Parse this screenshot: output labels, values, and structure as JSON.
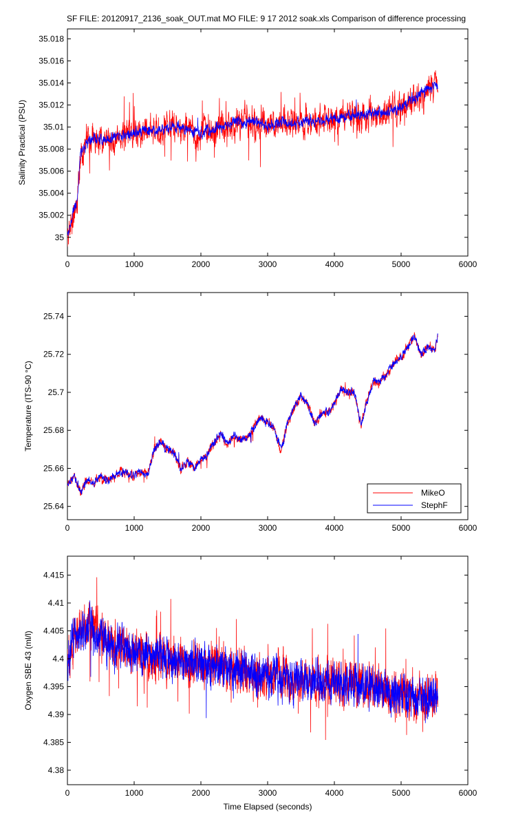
{
  "figure": {
    "title": "SF FILE: 20120917_2136_soak_OUT.mat  MO FILE: 9 17 2012 soak.xls   Comparison of difference processing",
    "series_colors": {
      "MikeO": "#ff0000",
      "StephF": "#0000ff"
    }
  },
  "chart_data": [
    {
      "type": "line",
      "title": "",
      "xlabel": "",
      "ylabel": "Salinity Practical (PSU)",
      "xlim": [
        0,
        6000
      ],
      "ylim": [
        34.9983,
        35.0189
      ],
      "xticks": [
        0,
        1000,
        2000,
        3000,
        4000,
        5000,
        6000
      ],
      "yticks": [
        35,
        35.002,
        35.004,
        35.006,
        35.008,
        35.01,
        35.012,
        35.014,
        35.016,
        35.018
      ],
      "ytick_labels": [
        "35",
        "35.002",
        "35.004",
        "35.006",
        "35.008",
        "35.01",
        "35.012",
        "35.014",
        "35.016",
        "35.018"
      ],
      "grid": false,
      "legend": null,
      "series": [
        {
          "name": "MikeO",
          "color": "#ff0000",
          "x": [
            0,
            150,
            200,
            400,
            600,
            800,
            1000,
            1200,
            1400,
            1600,
            1800,
            2000,
            2200,
            2400,
            2600,
            2800,
            3000,
            3200,
            3400,
            3600,
            3800,
            4000,
            4200,
            4400,
            4600,
            4800,
            5000,
            5200,
            5400,
            5550
          ],
          "y": [
            35.0,
            35.0035,
            35.008,
            35.009,
            35.0088,
            35.0092,
            35.0095,
            35.0097,
            35.0098,
            35.0101,
            35.0098,
            35.0094,
            35.0098,
            35.0103,
            35.0104,
            35.0104,
            35.0102,
            35.0103,
            35.0104,
            35.0105,
            35.0106,
            35.0108,
            35.0109,
            35.0112,
            35.0111,
            35.0115,
            35.0118,
            35.0125,
            35.0135,
            35.0138
          ],
          "noise": 0.0016
        },
        {
          "name": "StephF",
          "color": "#0000ff",
          "x": [
            0,
            150,
            200,
            400,
            600,
            800,
            1000,
            1200,
            1400,
            1600,
            1800,
            2000,
            2200,
            2400,
            2600,
            2800,
            3000,
            3200,
            3400,
            3600,
            3800,
            4000,
            4200,
            4400,
            4600,
            4800,
            5000,
            5200,
            5400,
            5550
          ],
          "y": [
            35.0,
            35.0035,
            35.008,
            35.009,
            35.0088,
            35.0092,
            35.0095,
            35.0097,
            35.0098,
            35.0101,
            35.0098,
            35.0094,
            35.0098,
            35.0103,
            35.0104,
            35.0104,
            35.0102,
            35.0103,
            35.0104,
            35.0105,
            35.0106,
            35.0108,
            35.0109,
            35.0112,
            35.0111,
            35.0115,
            35.0118,
            35.0125,
            35.0135,
            35.0138
          ],
          "noise": 0.0006
        }
      ]
    },
    {
      "type": "line",
      "title": "",
      "xlabel": "",
      "ylabel": "Temperature (ITS-90 °C)",
      "xlim": [
        0,
        6000
      ],
      "ylim": [
        25.633,
        25.7525
      ],
      "xticks": [
        0,
        1000,
        2000,
        3000,
        4000,
        5000,
        6000
      ],
      "yticks": [
        25.64,
        25.66,
        25.68,
        25.7,
        25.72,
        25.74
      ],
      "ytick_labels": [
        "25.64",
        "25.66",
        "25.68",
        "25.7",
        "25.72",
        "25.74"
      ],
      "grid": false,
      "legend": {
        "position": "bottom-right",
        "entries": [
          "MikeO",
          "StephF"
        ]
      },
      "series": [
        {
          "name": "MikeO",
          "color": "#ff0000",
          "x": [
            0,
            100,
            200,
            300,
            400,
            500,
            600,
            700,
            800,
            900,
            1000,
            1100,
            1200,
            1300,
            1400,
            1500,
            1600,
            1700,
            1800,
            1900,
            2000,
            2100,
            2200,
            2300,
            2400,
            2500,
            2600,
            2700,
            2800,
            2900,
            3000,
            3100,
            3200,
            3300,
            3400,
            3500,
            3600,
            3700,
            3800,
            3900,
            4000,
            4100,
            4200,
            4300,
            4400,
            4500,
            4600,
            4700,
            4800,
            4900,
            5000,
            5100,
            5200,
            5300,
            5400,
            5500,
            5550
          ],
          "y": [
            25.651,
            25.656,
            25.648,
            25.654,
            25.653,
            25.655,
            25.654,
            25.656,
            25.658,
            25.657,
            25.656,
            25.658,
            25.656,
            25.67,
            25.674,
            25.67,
            25.668,
            25.66,
            25.664,
            25.66,
            25.664,
            25.667,
            25.674,
            25.678,
            25.673,
            25.677,
            25.675,
            25.676,
            25.682,
            25.687,
            25.684,
            25.681,
            25.67,
            25.684,
            25.692,
            25.698,
            25.694,
            25.684,
            25.688,
            25.69,
            25.694,
            25.702,
            25.7,
            25.7,
            25.683,
            25.697,
            25.706,
            25.706,
            25.71,
            25.716,
            25.718,
            25.724,
            25.73,
            25.72,
            25.724,
            25.722,
            25.73
          ],
          "noise": 0.003
        },
        {
          "name": "StephF",
          "color": "#0000ff",
          "x": [
            0,
            100,
            200,
            300,
            400,
            500,
            600,
            700,
            800,
            900,
            1000,
            1100,
            1200,
            1300,
            1400,
            1500,
            1600,
            1700,
            1800,
            1900,
            2000,
            2100,
            2200,
            2300,
            2400,
            2500,
            2600,
            2700,
            2800,
            2900,
            3000,
            3100,
            3200,
            3300,
            3400,
            3500,
            3600,
            3700,
            3800,
            3900,
            4000,
            4100,
            4200,
            4300,
            4400,
            4500,
            4600,
            4700,
            4800,
            4900,
            5000,
            5100,
            5200,
            5300,
            5400,
            5500,
            5550
          ],
          "y": [
            25.651,
            25.656,
            25.648,
            25.654,
            25.653,
            25.655,
            25.654,
            25.656,
            25.658,
            25.657,
            25.656,
            25.658,
            25.656,
            25.67,
            25.674,
            25.67,
            25.668,
            25.66,
            25.664,
            25.66,
            25.664,
            25.667,
            25.674,
            25.678,
            25.673,
            25.677,
            25.675,
            25.676,
            25.682,
            25.687,
            25.684,
            25.681,
            25.67,
            25.684,
            25.692,
            25.698,
            25.694,
            25.684,
            25.688,
            25.69,
            25.694,
            25.702,
            25.7,
            25.7,
            25.683,
            25.697,
            25.706,
            25.706,
            25.71,
            25.716,
            25.718,
            25.724,
            25.73,
            25.72,
            25.724,
            25.722,
            25.73
          ],
          "noise": 0.0025
        }
      ]
    },
    {
      "type": "line",
      "title": "",
      "xlabel": "Time Elapsed (seconds)",
      "ylabel": "Oxygen SBE 43 (ml/l)",
      "xlim": [
        0,
        6000
      ],
      "ylim": [
        4.3774,
        4.4184
      ],
      "xticks": [
        0,
        1000,
        2000,
        3000,
        4000,
        5000,
        6000
      ],
      "yticks": [
        4.38,
        4.385,
        4.39,
        4.395,
        4.4,
        4.405,
        4.41,
        4.415
      ],
      "ytick_labels": [
        "4.38",
        "4.385",
        "4.39",
        "4.395",
        "4.4",
        "4.405",
        "4.41",
        "4.415"
      ],
      "grid": false,
      "legend": null,
      "series": [
        {
          "name": "MikeO",
          "color": "#ff0000",
          "x": [
            0,
            100,
            300,
            600,
            1000,
            1500,
            2000,
            2500,
            3000,
            3500,
            4000,
            4500,
            5000,
            5550
          ],
          "y": [
            4.399,
            4.404,
            4.406,
            4.403,
            4.401,
            4.4,
            4.399,
            4.398,
            4.397,
            4.396,
            4.3955,
            4.395,
            4.3935,
            4.393
          ],
          "noise": 0.0045
        },
        {
          "name": "StephF",
          "color": "#0000ff",
          "x": [
            0,
            100,
            300,
            600,
            1000,
            1500,
            2000,
            2500,
            3000,
            3500,
            4000,
            4500,
            5000,
            5550
          ],
          "y": [
            4.399,
            4.404,
            4.406,
            4.403,
            4.401,
            4.4,
            4.399,
            4.398,
            4.397,
            4.396,
            4.3955,
            4.395,
            4.3935,
            4.393
          ],
          "noise": 0.0042
        }
      ]
    }
  ]
}
